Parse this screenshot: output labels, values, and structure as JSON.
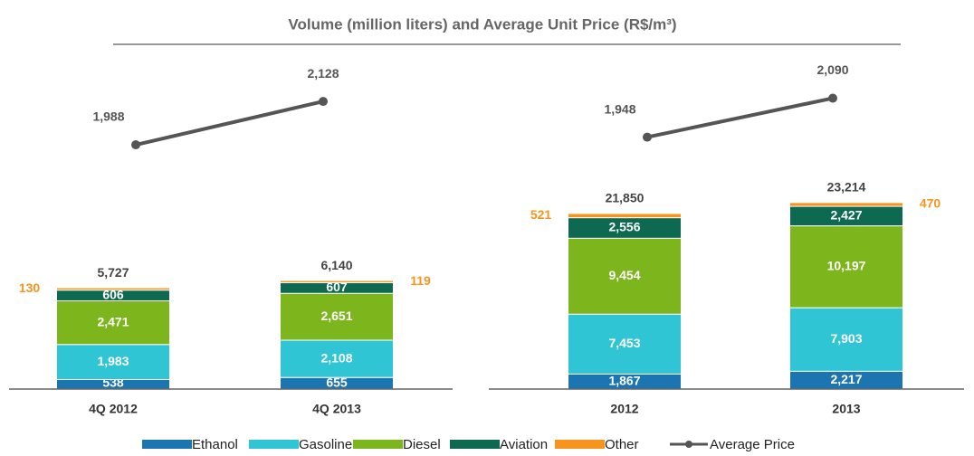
{
  "chart_data": {
    "type": "bar",
    "title": "Volume (million liters) and Average Unit Price (R$/m³)",
    "series": [
      {
        "name": "Ethanol",
        "color": "#1b75b1"
      },
      {
        "name": "Gasoline",
        "color": "#2fc5d5"
      },
      {
        "name": "Diesel",
        "color": "#7cb51c"
      },
      {
        "name": "Aviation",
        "color": "#0d6a50"
      },
      {
        "name": "Other",
        "color": "#f7941d"
      }
    ],
    "line": {
      "name": "Average Price",
      "color": "#555555"
    },
    "panels": [
      {
        "categories": [
          "4Q 2012",
          "4Q 2013"
        ],
        "values": [
          [
            538,
            655
          ],
          [
            1983,
            2108
          ],
          [
            2471,
            2651
          ],
          [
            606,
            607
          ],
          [
            130,
            119
          ]
        ],
        "totals": [
          5727,
          6140
        ],
        "price": [
          1988,
          2128
        ],
        "price_labels": [
          "1,988",
          "2,128"
        ],
        "value_labels": [
          [
            "538",
            "655"
          ],
          [
            "1,983",
            "2,108"
          ],
          [
            "2,471",
            "2,651"
          ],
          [
            "606",
            "607"
          ],
          [
            "130",
            "119"
          ]
        ],
        "total_labels": [
          "5,727",
          "6,140"
        ],
        "ylim": [
          0,
          15000
        ],
        "y2lim": [
          1200,
          2280
        ]
      },
      {
        "categories": [
          "2012",
          "2013"
        ],
        "values": [
          [
            1867,
            2217
          ],
          [
            7453,
            7903
          ],
          [
            9454,
            10197
          ],
          [
            2556,
            2427
          ],
          [
            521,
            470
          ]
        ],
        "totals": [
          21850,
          23214
        ],
        "price": [
          1948,
          2090
        ],
        "price_labels": [
          "1,948",
          "2,090"
        ],
        "value_labels": [
          [
            "1,867",
            "2,217"
          ],
          [
            "7,453",
            "7,903"
          ],
          [
            "9,454",
            "10,197"
          ],
          [
            "2,556",
            "2,427"
          ],
          [
            "521",
            "470"
          ]
        ],
        "total_labels": [
          "21,850",
          "23,214"
        ],
        "ylim": [
          0,
          33000
        ],
        "y2lim": [
          1030,
          2250
        ]
      }
    ]
  }
}
